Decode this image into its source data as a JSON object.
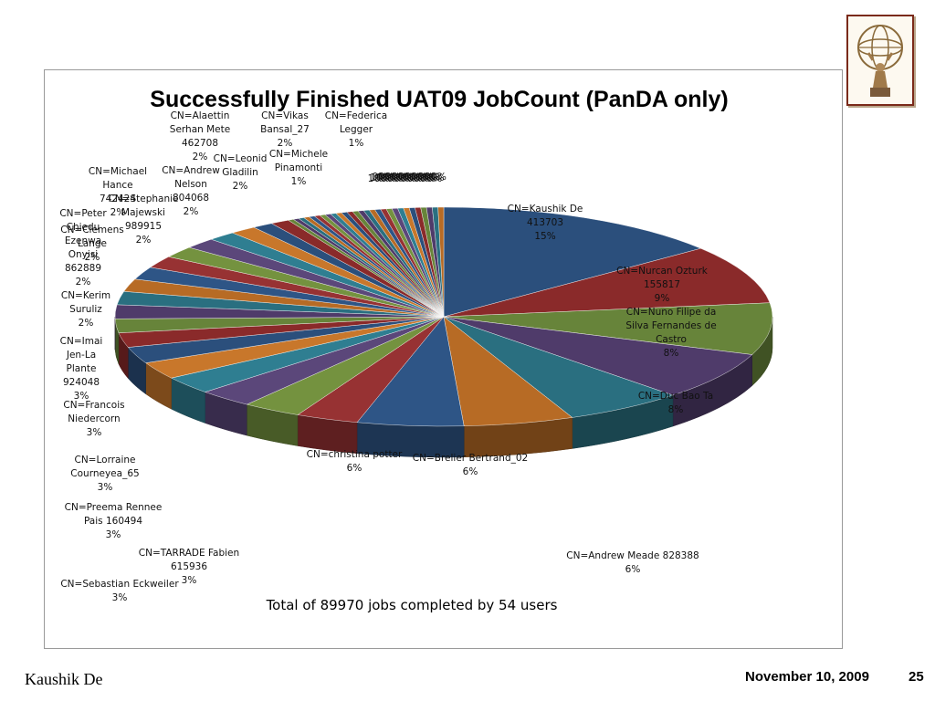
{
  "slide": {
    "author": "Kaushik De",
    "date": "November 10, 2009",
    "page_number": "25",
    "logo_icon": "atlas-globe-logo-icon"
  },
  "chart_data": {
    "type": "pie",
    "title": "Successfully Finished UAT09 JobCount (PanDA only)",
    "total_text": "Total of 89970 jobs completed by 54 users",
    "slices": [
      {
        "label": "CN=Kaushik De 413703",
        "pct": "15%",
        "value": 15.3
      },
      {
        "label": "CN=Nurcan Ozturk 155817",
        "pct": "9%",
        "value": 9.3
      },
      {
        "label": "CN=Nuno Filipe da Silva Fernandes de Castro",
        "pct": "8%",
        "value": 8.2
      },
      {
        "label": "CN=Duc Bao Ta",
        "pct": "8%",
        "value": 7.6
      },
      {
        "label": "CN=Andrew Meade 828388",
        "pct": "6%",
        "value": 6.3
      },
      {
        "label": "CN=Brelier Bertrand_02",
        "pct": "6%",
        "value": 5.8
      },
      {
        "label": "CN=christina potter",
        "pct": "6%",
        "value": 5.6
      },
      {
        "label": "CN=Sebastian Eckweiler",
        "pct": "3%",
        "value": 3.3
      },
      {
        "label": "CN=TARRADE Fabien 615936",
        "pct": "3%",
        "value": 3.1
      },
      {
        "label": "CN=Preema Rennee Pais 160494",
        "pct": "3%",
        "value": 2.9
      },
      {
        "label": "CN=Lorraine Courneyea_65",
        "pct": "3%",
        "value": 2.8
      },
      {
        "label": "CN=Francois Niedercorn",
        "pct": "3%",
        "value": 2.7
      },
      {
        "label": "CN=Imai Jen-La Plante 924048",
        "pct": "3%",
        "value": 2.6
      },
      {
        "label": "CN=Kerim Suruliz",
        "pct": "2%",
        "value": 2.3
      },
      {
        "label": "CN=Clemens Lange",
        "pct": "2%",
        "value": 2.2
      },
      {
        "label": "CN=Peter Chiedu Ezenwa Onyisi 862889",
        "pct": "2%",
        "value": 2.2
      },
      {
        "label": "CN=Stephanie Majewski 989915",
        "pct": "2%",
        "value": 2.1
      },
      {
        "label": "CN=Michael Hance 742424",
        "pct": "2%",
        "value": 2.0
      },
      {
        "label": "CN=Andrew Nelson 804068",
        "pct": "2%",
        "value": 2.0
      },
      {
        "label": "CN=Leonid Gladilin",
        "pct": "2%",
        "value": 1.9
      },
      {
        "label": "CN=Alaettin Serhan Mete 462708",
        "pct": "2%",
        "value": 1.8
      },
      {
        "label": "CN=Vikas Bansal_27",
        "pct": "2%",
        "value": 1.7
      },
      {
        "label": "CN=Michele Pinamonti",
        "pct": "1%",
        "value": 1.5
      },
      {
        "label": "CN=Federica Legger",
        "pct": "1%",
        "value": 1.4
      },
      {
        "label": "",
        "pct": "1%",
        "value": 1.1
      },
      {
        "label": "",
        "pct": "1%",
        "value": 1.0
      },
      {
        "label": "",
        "pct": "0%",
        "value": 0.3
      },
      {
        "label": "",
        "pct": "0%",
        "value": 0.3
      },
      {
        "label": "",
        "pct": "0%",
        "value": 0.3
      },
      {
        "label": "",
        "pct": "0%",
        "value": 0.3
      },
      {
        "label": "",
        "pct": "0%",
        "value": 0.3
      },
      {
        "label": "",
        "pct": "0%",
        "value": 0.3
      },
      {
        "label": "",
        "pct": "0%",
        "value": 0.3
      },
      {
        "label": "",
        "pct": "0%",
        "value": 0.3
      },
      {
        "label": "",
        "pct": "0%",
        "value": 0.3
      },
      {
        "label": "",
        "pct": "0%",
        "value": 0.3
      },
      {
        "label": "",
        "pct": "0%",
        "value": 0.3
      },
      {
        "label": "",
        "pct": "0%",
        "value": 0.3
      },
      {
        "label": "",
        "pct": "0%",
        "value": 0.3
      },
      {
        "label": "",
        "pct": "0%",
        "value": 0.3
      },
      {
        "label": "",
        "pct": "0%",
        "value": 0.3
      },
      {
        "label": "",
        "pct": "0%",
        "value": 0.3
      },
      {
        "label": "",
        "pct": "0%",
        "value": 0.3
      },
      {
        "label": "",
        "pct": "0%",
        "value": 0.3
      },
      {
        "label": "",
        "pct": "0%",
        "value": 0.3
      },
      {
        "label": "",
        "pct": "0%",
        "value": 0.3
      },
      {
        "label": "",
        "pct": "0%",
        "value": 0.3
      },
      {
        "label": "",
        "pct": "0%",
        "value": 0.3
      },
      {
        "label": "",
        "pct": "0%",
        "value": 0.3
      },
      {
        "label": "",
        "pct": "0%",
        "value": 0.3
      },
      {
        "label": "",
        "pct": "0%",
        "value": 0.3
      },
      {
        "label": "",
        "pct": "0%",
        "value": 0.3
      },
      {
        "label": "",
        "pct": "0%",
        "value": 0.3
      },
      {
        "label": "",
        "pct": "0%",
        "value": 0.3
      }
    ],
    "palette": [
      "#2b4f7c",
      "#8a2a2a",
      "#67843a",
      "#4f3b6a",
      "#2a6f80",
      "#b76b25",
      "#2e5586",
      "#973233",
      "#74923f",
      "#5b477a",
      "#2f7e91",
      "#c8772b"
    ],
    "legend": "none"
  }
}
